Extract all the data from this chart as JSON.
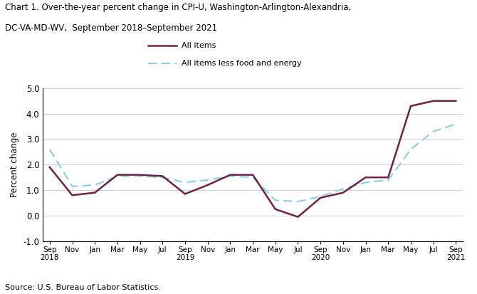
{
  "title_line1": "Chart 1. Over-the-year percent change in CPI-U, Washington-Arlington-Alexandria,",
  "title_line2": "DC-VA-MD-WV,  September 2018–September 2021",
  "ylabel": "Percent change",
  "source": "Source: U.S. Bureau of Labor Statistics.",
  "ylim": [
    -1.0,
    5.0
  ],
  "yticks": [
    -1.0,
    0.0,
    1.0,
    2.0,
    3.0,
    4.0,
    5.0
  ],
  "all_items_color": "#722042",
  "all_items_less_color": "#87CEEB",
  "tick_labels": [
    "Sep\n2018",
    "Nov",
    "Jan",
    "Mar",
    "May",
    "Jul",
    "Sep\n2019",
    "Nov",
    "Jan",
    "Mar",
    "May",
    "Jul",
    "Sep\n2020",
    "Nov",
    "Jan",
    "Mar",
    "May",
    "Jul",
    "Sep\n2021"
  ],
  "all_items": [
    1.9,
    0.8,
    0.9,
    1.6,
    1.6,
    1.55,
    0.85,
    1.2,
    1.6,
    1.6,
    0.25,
    -0.05,
    0.7,
    0.9,
    1.5,
    1.5,
    4.3,
    4.5,
    4.5
  ],
  "all_items_less": [
    2.6,
    1.15,
    1.2,
    1.55,
    1.55,
    1.5,
    1.3,
    1.4,
    1.55,
    1.5,
    0.6,
    0.55,
    0.75,
    1.05,
    1.3,
    1.4,
    2.6,
    3.3,
    3.6
  ]
}
